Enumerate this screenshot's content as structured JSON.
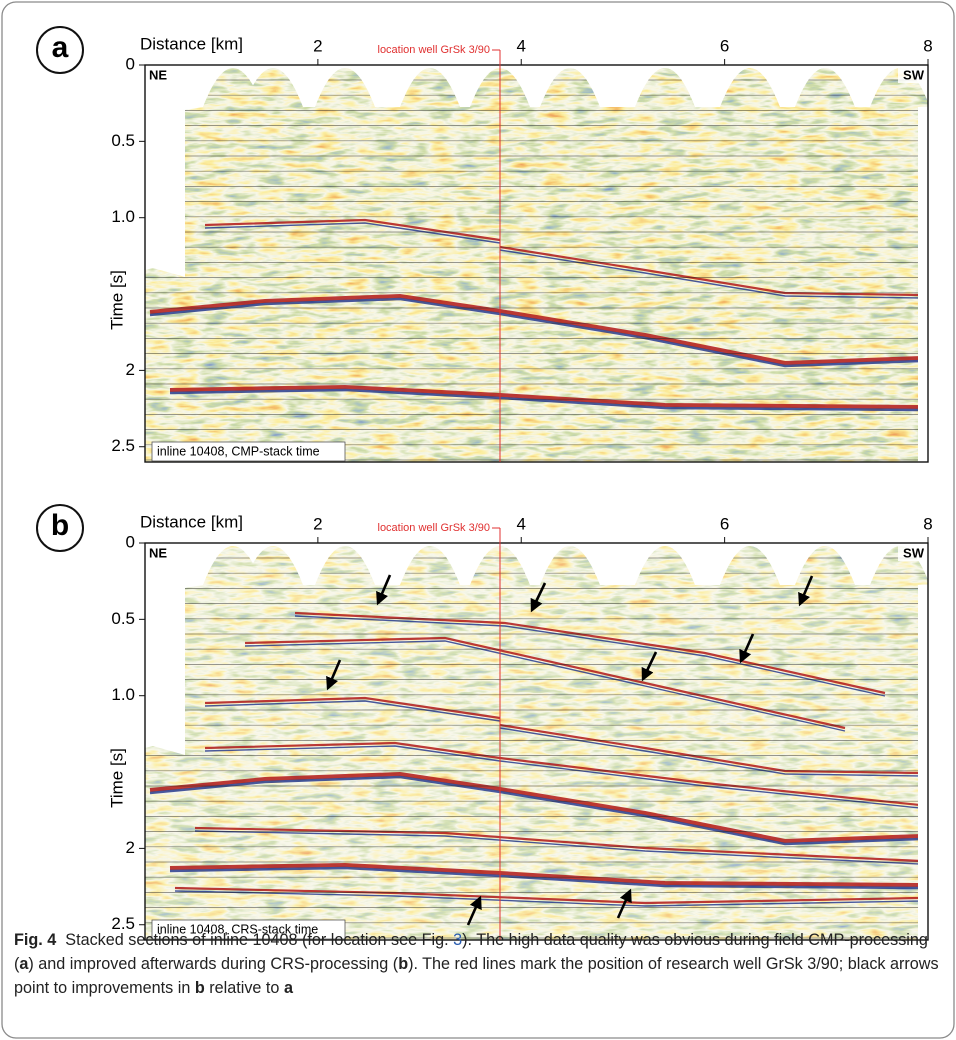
{
  "panels": [
    {
      "label": "a",
      "x_axis_title": "Distance [km]",
      "xlim": [
        0.3,
        8
      ],
      "xticks": [
        2,
        4,
        6,
        8
      ],
      "y_axis_title": "Time [s]",
      "ylim": [
        0,
        2.6
      ],
      "yticks": [
        0,
        0.5,
        {
          "value": 1,
          "label": "1.0"
        },
        2,
        2.5
      ],
      "well_label": "location well GrSk 3/90",
      "left_corner": "NE",
      "right_corner": "SW",
      "inset_label": "inline 10408, CMP-stack time"
    },
    {
      "label": "b",
      "x_axis_title": "Distance [km]",
      "xlim": [
        0.3,
        8
      ],
      "xticks": [
        2,
        4,
        6,
        8
      ],
      "y_axis_title": "Time [s]",
      "ylim": [
        0,
        2.6
      ],
      "yticks": [
        0,
        0.5,
        {
          "value": 1,
          "label": "1.0"
        },
        2,
        2.5
      ],
      "well_label": "location well GrSk 3/90",
      "left_corner": "NE",
      "right_corner": "SW",
      "inset_label": "inline 10408, CRS-stack time"
    }
  ],
  "caption": {
    "parts": [
      "Fig. 4",
      "Stacked sections of inline 10408 (for location see Fig. ",
      "3",
      "). The high data quality was obvious during field CMP-processing (",
      "a",
      ") and improved afterwards during CRS-processing (",
      "b",
      "). The red lines mark the position of research well GrSk 3/90; black arrows point to improvements in ",
      "b",
      " relative to ",
      "a"
    ]
  }
}
